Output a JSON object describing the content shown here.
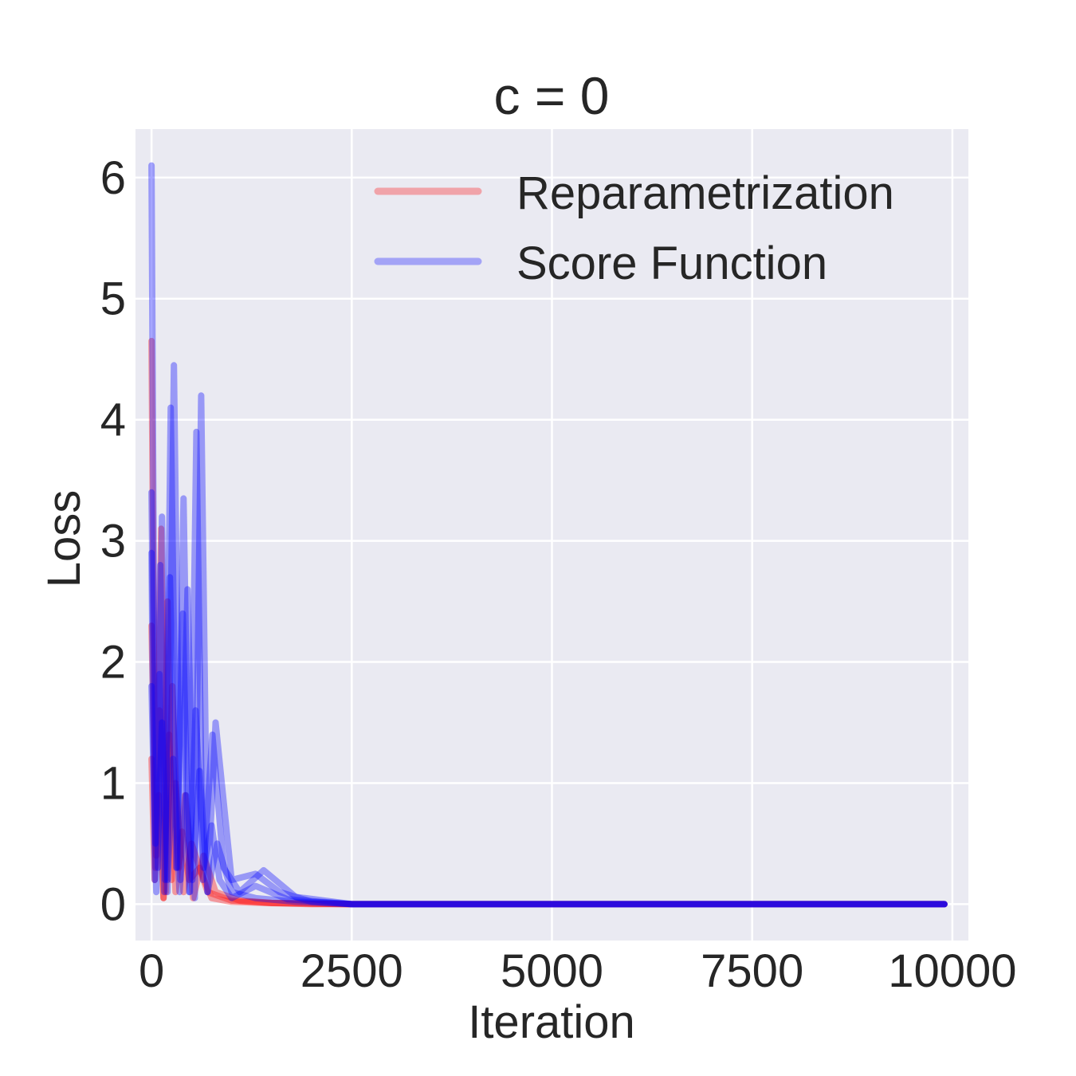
{
  "chart_data": {
    "type": "line",
    "title": "c = 0",
    "xlabel": "Iteration",
    "ylabel": "Loss",
    "xlim": [
      -200,
      10200
    ],
    "ylim": [
      -0.3,
      6.4
    ],
    "xticks": [
      0,
      2500,
      5000,
      7500,
      10000
    ],
    "yticks": [
      0,
      1,
      2,
      3,
      4,
      5,
      6
    ],
    "grid": true,
    "legend_position": "top-right",
    "colors": {
      "Reparametrization": "#ff0000",
      "Score Function": "#0000ff",
      "background": "#eaeaf2",
      "grid": "#ffffff"
    },
    "legend": [
      "Reparametrization",
      "Score Function"
    ],
    "series": [
      {
        "name": "Reparametrization",
        "color": "#ff0000",
        "x": [
          0,
          50,
          100,
          150,
          200,
          250,
          300,
          400,
          500,
          700,
          1000,
          1500,
          2000,
          2500,
          5000,
          7500,
          9900
        ],
        "values": [
          4.65,
          0.3,
          1.6,
          0.05,
          2.5,
          0.2,
          1.0,
          0.1,
          0.5,
          0.1,
          0.03,
          0.01,
          0.005,
          0.0,
          0.0,
          0.0,
          0.0
        ]
      },
      {
        "name": "",
        "color": "#ff0000",
        "x": [
          0,
          60,
          120,
          180,
          260,
          340,
          420,
          520,
          650,
          800,
          1100,
          1500,
          2500,
          9900
        ],
        "values": [
          2.3,
          0.4,
          3.1,
          0.1,
          1.8,
          0.3,
          0.9,
          0.05,
          0.4,
          0.1,
          0.03,
          0.01,
          0.0,
          0.0
        ]
      },
      {
        "name": "",
        "color": "#ff0000",
        "x": [
          0,
          40,
          90,
          150,
          220,
          300,
          380,
          470,
          600,
          750,
          1000,
          1400,
          2000,
          9900
        ],
        "values": [
          1.2,
          0.2,
          0.9,
          0.05,
          1.4,
          0.1,
          0.6,
          0.2,
          0.3,
          0.05,
          0.02,
          0.01,
          0.0,
          0.0
        ]
      },
      {
        "name": "Score Function",
        "color": "#0000ff",
        "x": [
          0,
          30,
          80,
          130,
          200,
          280,
          360,
          450,
          540,
          620,
          700,
          800,
          1000,
          1300,
          1600,
          2000,
          2500,
          5000,
          7500,
          9900
        ],
        "values": [
          6.1,
          2.5,
          0.3,
          3.2,
          0.1,
          4.45,
          0.2,
          2.6,
          0.05,
          4.2,
          0.1,
          1.5,
          0.2,
          0.25,
          0.1,
          0.02,
          0.0,
          0.0,
          0.0,
          0.0
        ]
      },
      {
        "name": "",
        "color": "#0000ff",
        "x": [
          0,
          50,
          110,
          170,
          240,
          320,
          400,
          480,
          560,
          640,
          760,
          900,
          1100,
          1400,
          1800,
          2500,
          9900
        ],
        "values": [
          3.4,
          0.5,
          2.8,
          0.2,
          4.1,
          0.3,
          3.35,
          0.1,
          3.9,
          0.2,
          1.4,
          0.3,
          0.1,
          0.28,
          0.06,
          0.0,
          0.0
        ]
      },
      {
        "name": "",
        "color": "#0000ff",
        "x": [
          0,
          40,
          100,
          160,
          230,
          310,
          390,
          470,
          550,
          650,
          750,
          850,
          1000,
          1300,
          1700,
          2500,
          9900
        ],
        "values": [
          2.9,
          0.2,
          1.9,
          0.1,
          2.7,
          0.3,
          2.4,
          0.1,
          1.6,
          0.3,
          0.65,
          0.2,
          0.05,
          0.15,
          0.04,
          0.0,
          0.0
        ]
      },
      {
        "name": "",
        "color": "#0000ff",
        "x": [
          0,
          60,
          130,
          200,
          270,
          350,
          430,
          510,
          600,
          700,
          820,
          1000,
          1300,
          1800,
          2500,
          9900
        ],
        "values": [
          1.8,
          0.1,
          1.5,
          0.2,
          1.2,
          0.1,
          0.9,
          0.2,
          1.1,
          0.1,
          0.5,
          0.1,
          0.05,
          0.02,
          0.0,
          0.0
        ]
      }
    ]
  }
}
